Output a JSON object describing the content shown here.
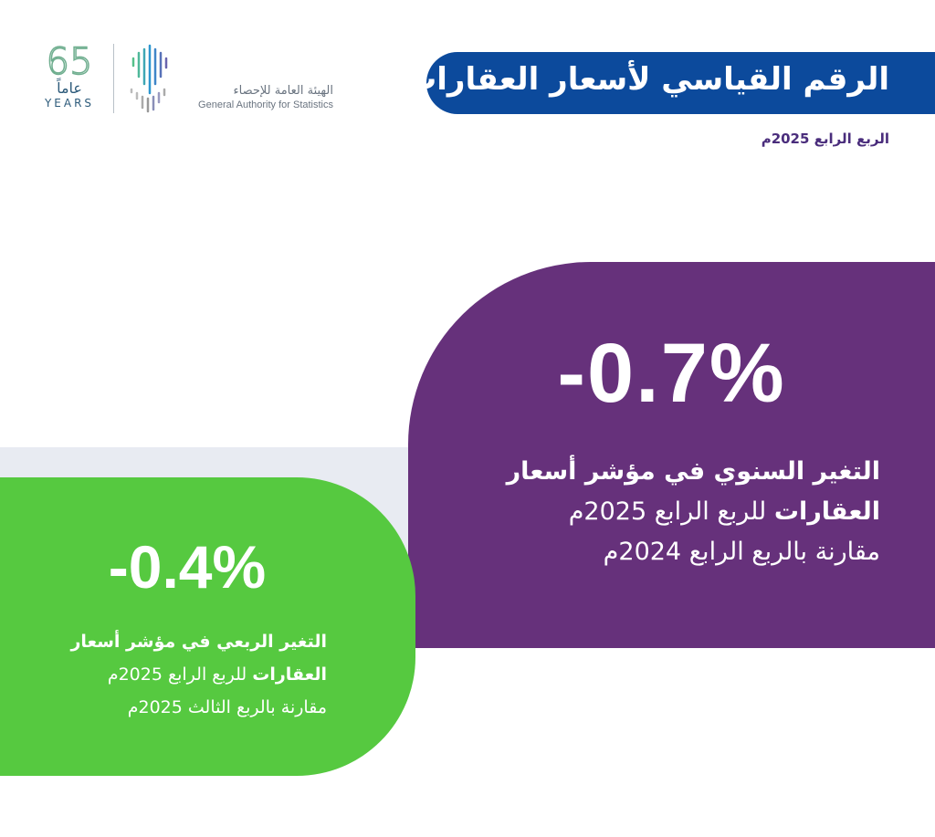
{
  "logos": {
    "anniversary": {
      "number": "65",
      "arabic": "عاماً",
      "english": "YEARS"
    },
    "gastat": {
      "arabic": "الهيئة العامة للإحصاء",
      "english": "General Authority for Statistics",
      "icon": "gastat-barcode-palm-icon"
    }
  },
  "header": {
    "title": "الرقم القياسي لأسعار العقارات",
    "subtitle": "الربع الرابع 2025م"
  },
  "colors": {
    "banner": "#0c4a9c",
    "annual_card": "#66317b",
    "quarterly_card": "#56c940",
    "band": "#e8ebf2"
  },
  "annual": {
    "value": "-0.7%",
    "line1": "التغير السنوي في مؤشر أسعار",
    "line2_bold": "العقارات",
    "line2_rest": " للربع الرابع 2025م",
    "line3": "مقارنة بالربع الرابع 2024م"
  },
  "quarterly": {
    "value": "-0.4%",
    "line1": "التغير الربعي في مؤشر أسعار",
    "line2_bold": "العقارات",
    "line2_rest": " للربع الرابع 2025م",
    "line3": "مقارنة بالربع الثالث 2025م"
  }
}
